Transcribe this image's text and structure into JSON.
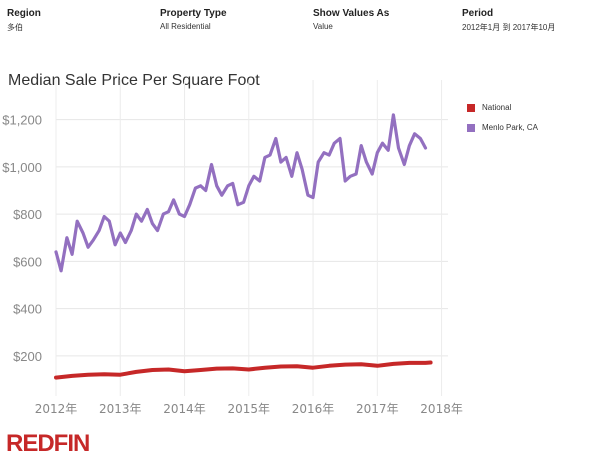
{
  "filters": [
    {
      "label": "Region",
      "value": "多伯"
    },
    {
      "label": "Property Type",
      "value": "All Residential"
    },
    {
      "label": "Show Values As",
      "value": "Value"
    },
    {
      "label": "Period",
      "value": "2012年1月 到 2017年10月"
    }
  ],
  "brand": "REDFIN",
  "chart_data": {
    "type": "line",
    "title": "Median Sale Price Per Square Foot",
    "xlabel": "",
    "ylabel": "",
    "ylim": [
      30,
      1300
    ],
    "xlim": [
      2012,
      2018.1
    ],
    "yticks": [
      200,
      400,
      600,
      800,
      1000,
      1200
    ],
    "ytick_labels": [
      "$200",
      "$400",
      "$600",
      "$800",
      "$1,000",
      "$1,200"
    ],
    "xticks": [
      2012,
      2013,
      2014,
      2015,
      2016,
      2017,
      2018
    ],
    "xtick_labels": [
      "2012年",
      "2013年",
      "2014年",
      "2015年",
      "2016年",
      "2017年",
      "2018年"
    ],
    "legend_position": "top-right",
    "series": [
      {
        "name": "National",
        "color": "#c62828",
        "values": [
          [
            2012.0,
            108
          ],
          [
            2012.25,
            115
          ],
          [
            2012.5,
            120
          ],
          [
            2012.75,
            122
          ],
          [
            2013.0,
            120
          ],
          [
            2013.25,
            132
          ],
          [
            2013.5,
            140
          ],
          [
            2013.75,
            142
          ],
          [
            2014.0,
            135
          ],
          [
            2014.25,
            140
          ],
          [
            2014.5,
            146
          ],
          [
            2014.75,
            147
          ],
          [
            2015.0,
            142
          ],
          [
            2015.25,
            150
          ],
          [
            2015.5,
            155
          ],
          [
            2015.75,
            156
          ],
          [
            2016.0,
            150
          ],
          [
            2016.25,
            158
          ],
          [
            2016.5,
            163
          ],
          [
            2016.75,
            164
          ],
          [
            2017.0,
            158
          ],
          [
            2017.25,
            166
          ],
          [
            2017.5,
            170
          ],
          [
            2017.75,
            170
          ],
          [
            2017.83,
            172
          ]
        ]
      },
      {
        "name": "Menlo Park, CA",
        "color": "#9370c0",
        "values": [
          [
            2012.0,
            640
          ],
          [
            2012.08,
            560
          ],
          [
            2012.17,
            700
          ],
          [
            2012.25,
            630
          ],
          [
            2012.33,
            770
          ],
          [
            2012.42,
            720
          ],
          [
            2012.5,
            660
          ],
          [
            2012.58,
            690
          ],
          [
            2012.67,
            730
          ],
          [
            2012.75,
            790
          ],
          [
            2012.83,
            770
          ],
          [
            2012.92,
            670
          ],
          [
            2013.0,
            720
          ],
          [
            2013.08,
            680
          ],
          [
            2013.17,
            730
          ],
          [
            2013.25,
            800
          ],
          [
            2013.33,
            770
          ],
          [
            2013.42,
            820
          ],
          [
            2013.5,
            760
          ],
          [
            2013.58,
            730
          ],
          [
            2013.67,
            800
          ],
          [
            2013.75,
            810
          ],
          [
            2013.83,
            860
          ],
          [
            2013.92,
            800
          ],
          [
            2014.0,
            790
          ],
          [
            2014.08,
            840
          ],
          [
            2014.17,
            910
          ],
          [
            2014.25,
            920
          ],
          [
            2014.33,
            900
          ],
          [
            2014.42,
            1010
          ],
          [
            2014.5,
            920
          ],
          [
            2014.58,
            880
          ],
          [
            2014.67,
            920
          ],
          [
            2014.75,
            930
          ],
          [
            2014.83,
            840
          ],
          [
            2014.92,
            850
          ],
          [
            2015.0,
            920
          ],
          [
            2015.08,
            960
          ],
          [
            2015.17,
            940
          ],
          [
            2015.25,
            1040
          ],
          [
            2015.33,
            1050
          ],
          [
            2015.42,
            1120
          ],
          [
            2015.5,
            1020
          ],
          [
            2015.58,
            1040
          ],
          [
            2015.67,
            960
          ],
          [
            2015.75,
            1060
          ],
          [
            2015.83,
            990
          ],
          [
            2015.92,
            880
          ],
          [
            2016.0,
            870
          ],
          [
            2016.08,
            1020
          ],
          [
            2016.17,
            1060
          ],
          [
            2016.25,
            1050
          ],
          [
            2016.33,
            1100
          ],
          [
            2016.42,
            1120
          ],
          [
            2016.5,
            940
          ],
          [
            2016.58,
            960
          ],
          [
            2016.67,
            970
          ],
          [
            2016.75,
            1090
          ],
          [
            2016.83,
            1020
          ],
          [
            2016.92,
            970
          ],
          [
            2017.0,
            1060
          ],
          [
            2017.08,
            1100
          ],
          [
            2017.17,
            1070
          ],
          [
            2017.25,
            1220
          ],
          [
            2017.33,
            1080
          ],
          [
            2017.42,
            1010
          ],
          [
            2017.5,
            1090
          ],
          [
            2017.58,
            1140
          ],
          [
            2017.67,
            1120
          ],
          [
            2017.75,
            1080
          ]
        ]
      }
    ]
  }
}
